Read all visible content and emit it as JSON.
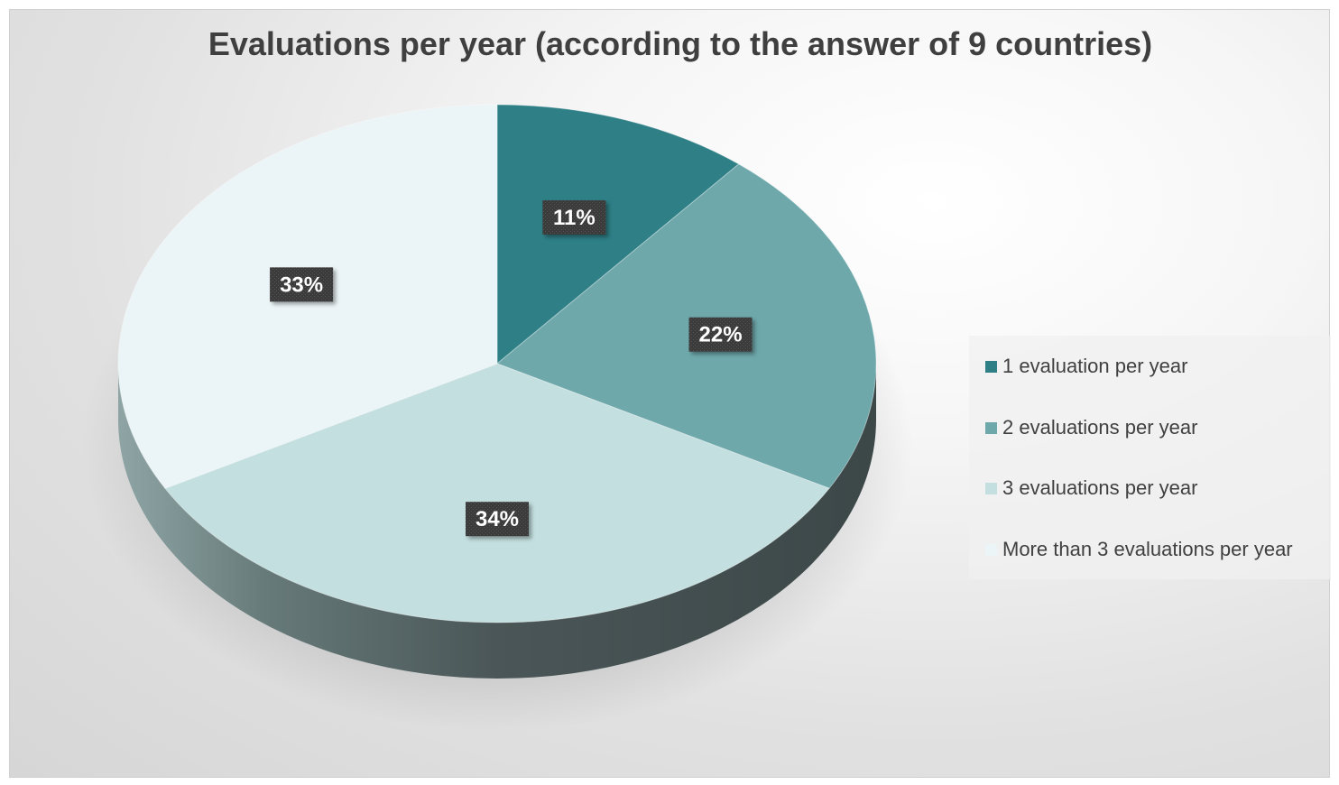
{
  "chart_data": {
    "type": "pie",
    "title": "Evaluations per year (according to the answer of 9 countries)",
    "categories": [
      "1 evaluation per year",
      "2 evaluations per year",
      "3 evaluations per year",
      "More than 3 evaluations per year"
    ],
    "values": [
      11,
      22,
      34,
      33
    ],
    "data_labels": [
      "11%",
      "22%",
      "34%",
      "33%"
    ],
    "colors": [
      "#2e7f86",
      "#6ea8ab",
      "#c3dfdf",
      "#ebf4f6"
    ],
    "legend_position": "right",
    "style": "3d"
  }
}
